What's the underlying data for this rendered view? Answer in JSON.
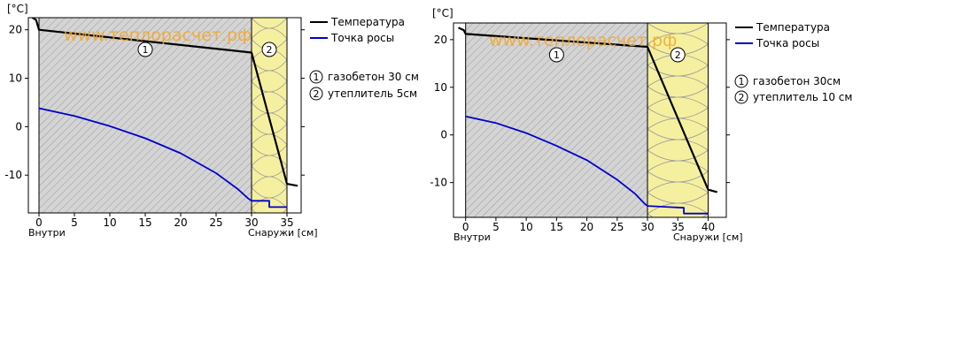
{
  "chart_data": [
    {
      "type": "line",
      "ylabel": "[°C]",
      "xlabel_left": "Внутри",
      "xlabel_right": "Снаружи [см]",
      "watermark": "www.теплорасчет.рф",
      "xlim": [
        -1.5,
        37
      ],
      "ylim": [
        -17.8,
        22.5
      ],
      "xticks": [
        0,
        5,
        10,
        15,
        20,
        25,
        30,
        35
      ],
      "yticks": [
        20,
        10,
        0,
        -10
      ],
      "layers": [
        {
          "id": "1",
          "from": 0,
          "to": 30,
          "fill": "#d4d4d4"
        },
        {
          "id": "2",
          "from": 30,
          "to": 35,
          "fill": "#f5f0a0"
        }
      ],
      "series": [
        {
          "name": "Температура",
          "color": "#000000",
          "x": [
            -1.2,
            -0.4,
            0,
            30,
            35,
            36.5
          ],
          "y": [
            22.8,
            22.0,
            20.0,
            15.3,
            -11.8,
            -12.2
          ]
        },
        {
          "name": "Точка росы",
          "color": "#0000cc",
          "x": [
            0,
            5,
            10,
            15,
            20,
            25,
            28,
            29.5,
            30,
            32.5,
            32.5,
            35
          ],
          "y": [
            3.8,
            2.2,
            0.1,
            -2.4,
            -5.5,
            -9.6,
            -12.8,
            -14.8,
            -15.3,
            -15.3,
            -16.6,
            -16.6
          ]
        }
      ],
      "legend_layers": [
        {
          "num": "1",
          "label": "газобетон 30 см"
        },
        {
          "num": "2",
          "label": "утеплитель 5см"
        }
      ]
    },
    {
      "type": "line",
      "ylabel": "[°C]",
      "xlabel_left": "Внутри",
      "xlabel_right": "Снаружи [см]",
      "watermark": "www.теплорасчет.рф",
      "xlim": [
        -2,
        43
      ],
      "ylim": [
        -17.3,
        23.5
      ],
      "xticks": [
        0,
        5,
        10,
        15,
        20,
        25,
        30,
        35,
        40
      ],
      "yticks": [
        20,
        10,
        0,
        -10
      ],
      "layers": [
        {
          "id": "1",
          "from": 0,
          "to": 30,
          "fill": "#d4d4d4"
        },
        {
          "id": "2",
          "from": 30,
          "to": 40,
          "fill": "#f5f0a0"
        }
      ],
      "series": [
        {
          "name": "Температура",
          "color": "#000000",
          "x": [
            -1.2,
            -0.3,
            0,
            30,
            40,
            41.5
          ],
          "y": [
            22.5,
            22.0,
            21.2,
            18.5,
            -11.5,
            -12.0
          ]
        },
        {
          "name": "Точка росы",
          "color": "#0000cc",
          "x": [
            0,
            5,
            10,
            15,
            20,
            25,
            28,
            29.5,
            30,
            36,
            36,
            40
          ],
          "y": [
            3.9,
            2.5,
            0.4,
            -2.3,
            -5.3,
            -9.4,
            -12.4,
            -14.4,
            -14.9,
            -15.3,
            -16.5,
            -16.5
          ]
        }
      ],
      "legend_layers": [
        {
          "num": "1",
          "label": "газобетон 30см"
        },
        {
          "num": "2",
          "label": "утеплитель 10 см"
        }
      ]
    }
  ]
}
